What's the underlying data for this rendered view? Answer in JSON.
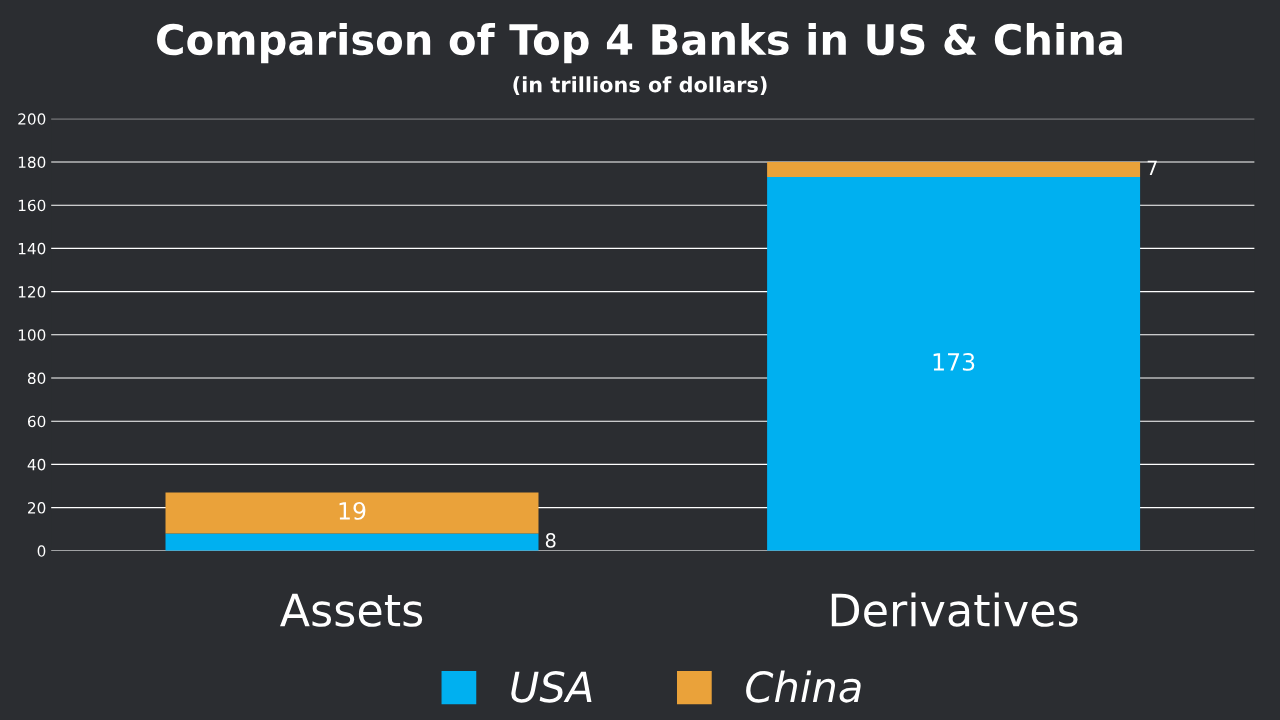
{
  "chart_data": {
    "type": "bar",
    "title": "Comparison of Top 4 Banks in US & China",
    "subtitle": "(in trillions of dollars)",
    "categories": [
      "Assets",
      "Derivatives"
    ],
    "stacked": true,
    "series": [
      {
        "name": "USA",
        "color": "#00b0f0",
        "values": [
          8,
          173
        ]
      },
      {
        "name": "China",
        "color": "#eaa23a",
        "values": [
          19,
          7
        ]
      }
    ],
    "ylim": [
      0,
      200
    ],
    "yticks": [
      0,
      20,
      40,
      60,
      80,
      100,
      120,
      140,
      160,
      180,
      200
    ],
    "grid": "y",
    "legend": "bottom",
    "data_labels": true
  }
}
